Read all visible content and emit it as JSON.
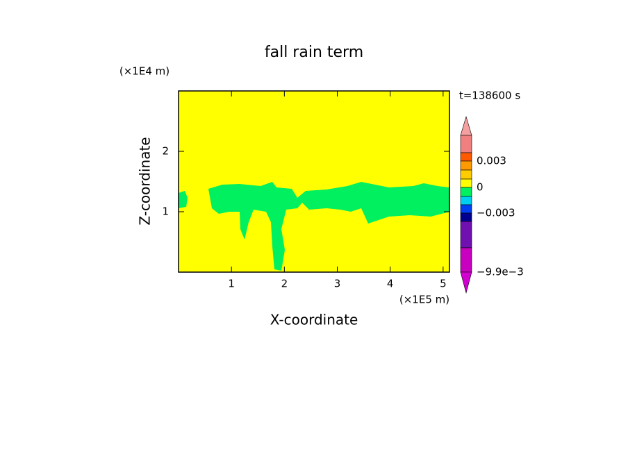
{
  "chart_data": {
    "type": "contour",
    "title": "fall rain term",
    "x_label": "X-coordinate",
    "y_label": "Z-coordinate",
    "x_unit": "(×1E5 m)",
    "y_unit": "(×1E4 m)",
    "time_label": "t=138600 s",
    "xlim": [
      0,
      5.12
    ],
    "ylim": [
      0,
      3
    ],
    "xticks": [
      1,
      2,
      3,
      4,
      5
    ],
    "yticks": [
      1,
      2
    ],
    "colorbar": {
      "colors": [
        "#f4a0a0",
        "#f08080",
        "#ff5a00",
        "#ff9a00",
        "#ffcc00",
        "#ffff00",
        "#00f060",
        "#00d0f0",
        "#0040f0",
        "#000090",
        "#7010b0",
        "#c800c0",
        "#d000d0"
      ],
      "ticks": [
        {
          "value": 0.003,
          "label": "0.003"
        },
        0,
        {
          "value": -0.003,
          "label": "−0.003"
        },
        {
          "value": -0.0099,
          "label": "−9.9e−3"
        }
      ]
    }
  }
}
